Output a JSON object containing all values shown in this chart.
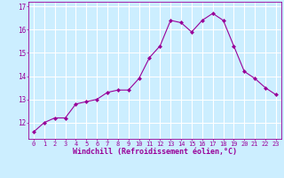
{
  "x": [
    0,
    1,
    2,
    3,
    4,
    5,
    6,
    7,
    8,
    9,
    10,
    11,
    12,
    13,
    14,
    15,
    16,
    17,
    18,
    19,
    20,
    21,
    22,
    23
  ],
  "y": [
    11.6,
    12.0,
    12.2,
    12.2,
    12.8,
    12.9,
    13.0,
    13.3,
    13.4,
    13.4,
    13.9,
    14.8,
    15.3,
    16.4,
    16.3,
    15.9,
    16.4,
    16.7,
    16.4,
    15.3,
    14.2,
    13.9,
    13.5,
    13.2
  ],
  "line_color": "#990099",
  "marker": "D",
  "marker_size": 2.0,
  "background_color": "#cceeff",
  "grid_color": "#ffffff",
  "xlabel": "Windchill (Refroidissement éolien,°C)",
  "xlabel_color": "#990099",
  "tick_color": "#990099",
  "ylim": [
    11.3,
    17.2
  ],
  "xlim": [
    -0.5,
    23.5
  ],
  "yticks": [
    12,
    13,
    14,
    15,
    16,
    17
  ],
  "xticks": [
    0,
    1,
    2,
    3,
    4,
    5,
    6,
    7,
    8,
    9,
    10,
    11,
    12,
    13,
    14,
    15,
    16,
    17,
    18,
    19,
    20,
    21,
    22,
    23
  ],
  "xtick_fontsize": 5.0,
  "ytick_fontsize": 5.5,
  "xlabel_fontsize": 6.0
}
